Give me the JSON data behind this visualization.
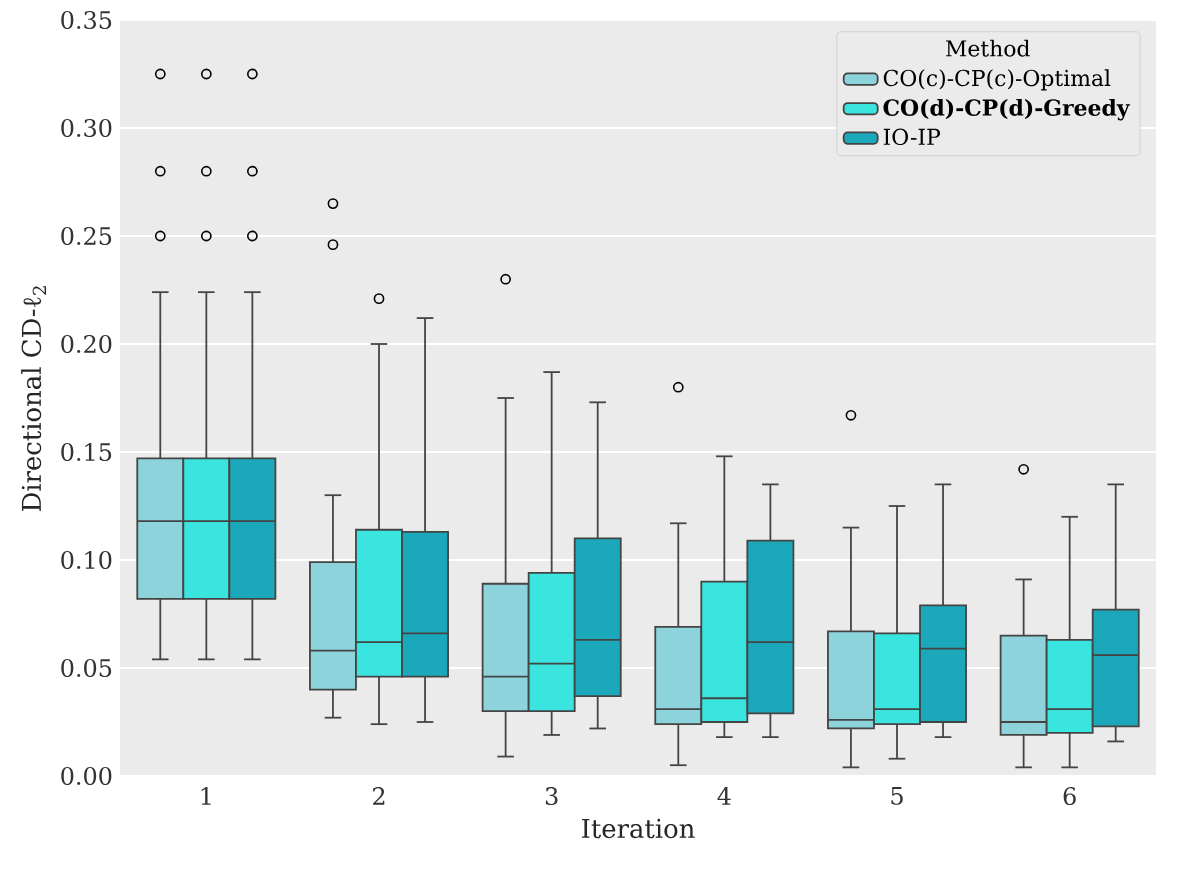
{
  "chart_data": {
    "type": "box",
    "xlabel": "Iteration",
    "ylabel": "Directional CD-ℓ$_{2}$",
    "legend_title": "Method",
    "legend": "top right",
    "grid": "y",
    "categories": [
      "1",
      "2",
      "3",
      "4",
      "5",
      "6"
    ],
    "ylim": [
      0,
      0.35
    ],
    "yticks": [
      {
        "value": 0,
        "label": "0.00"
      },
      {
        "value": 0.05,
        "label": "0.05"
      },
      {
        "value": 0.1,
        "label": "0.10"
      },
      {
        "value": 0.15,
        "label": "0.15"
      },
      {
        "value": 0.2,
        "label": "0.20"
      },
      {
        "value": 0.25,
        "label": "0.25"
      },
      {
        "value": 0.3,
        "label": "0.30"
      },
      {
        "value": 0.35,
        "label": "0.35"
      }
    ],
    "series": [
      {
        "name": "CO(c)-CP(c)-Optimal",
        "color": "#8dd3dc",
        "boxes": [
          {
            "low": 0.054,
            "q1": 0.082,
            "median": 0.118,
            "q3": 0.147,
            "high": 0.224,
            "outliers": [
              0.25,
              0.28,
              0.325
            ]
          },
          {
            "low": 0.027,
            "q1": 0.04,
            "median": 0.058,
            "q3": 0.099,
            "high": 0.13,
            "outliers": [
              0.246,
              0.265
            ]
          },
          {
            "low": 0.009,
            "q1": 0.03,
            "median": 0.046,
            "q3": 0.089,
            "high": 0.175,
            "outliers": [
              0.23
            ]
          },
          {
            "low": 0.005,
            "q1": 0.024,
            "median": 0.031,
            "q3": 0.069,
            "high": 0.117,
            "outliers": [
              0.18
            ]
          },
          {
            "low": 0.004,
            "q1": 0.022,
            "median": 0.026,
            "q3": 0.067,
            "high": 0.115,
            "outliers": [
              0.167
            ]
          },
          {
            "low": 0.004,
            "q1": 0.019,
            "median": 0.025,
            "q3": 0.065,
            "high": 0.091,
            "outliers": [
              0.142
            ]
          }
        ]
      },
      {
        "name": "**CO(d)-CP(d)-Greedy**",
        "color": "#3ae5e0",
        "boxes": [
          {
            "low": 0.054,
            "q1": 0.082,
            "median": 0.118,
            "q3": 0.147,
            "high": 0.224,
            "outliers": [
              0.25,
              0.28,
              0.325
            ]
          },
          {
            "low": 0.024,
            "q1": 0.046,
            "median": 0.062,
            "q3": 0.114,
            "high": 0.2,
            "outliers": [
              0.221
            ]
          },
          {
            "low": 0.019,
            "q1": 0.03,
            "median": 0.052,
            "q3": 0.094,
            "high": 0.187
          },
          {
            "low": 0.018,
            "q1": 0.025,
            "median": 0.036,
            "q3": 0.09,
            "high": 0.148
          },
          {
            "low": 0.008,
            "q1": 0.024,
            "median": 0.031,
            "q3": 0.066,
            "high": 0.125
          },
          {
            "low": 0.004,
            "q1": 0.02,
            "median": 0.031,
            "q3": 0.063,
            "high": 0.12
          }
        ]
      },
      {
        "name": "IO-IP",
        "color": "#1ca8bb",
        "boxes": [
          {
            "low": 0.054,
            "q1": 0.082,
            "median": 0.118,
            "q3": 0.147,
            "high": 0.224,
            "outliers": [
              0.25,
              0.28,
              0.325
            ]
          },
          {
            "low": 0.025,
            "q1": 0.046,
            "median": 0.066,
            "q3": 0.113,
            "high": 0.212
          },
          {
            "low": 0.022,
            "q1": 0.037,
            "median": 0.063,
            "q3": 0.11,
            "high": 0.173
          },
          {
            "low": 0.018,
            "q1": 0.029,
            "median": 0.062,
            "q3": 0.109,
            "high": 0.135
          },
          {
            "low": 0.018,
            "q1": 0.025,
            "median": 0.059,
            "q3": 0.079,
            "high": 0.135
          },
          {
            "low": 0.016,
            "q1": 0.023,
            "median": 0.056,
            "q3": 0.077,
            "high": 0.135
          }
        ]
      }
    ]
  }
}
